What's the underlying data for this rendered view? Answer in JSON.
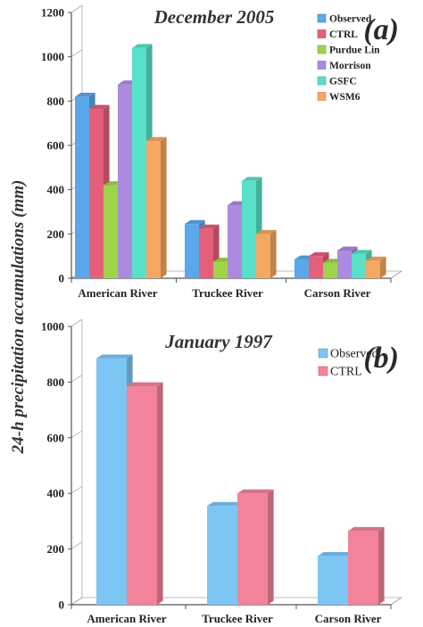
{
  "ylabel": "24-h precipitation accumulations (mm)",
  "chart_data": [
    {
      "type": "bar",
      "panel": "(a)",
      "title": "December 2005",
      "categories": [
        "American River",
        "Truckee River",
        "Carson River"
      ],
      "ylim": [
        0,
        1200
      ],
      "yticks": [
        0,
        200,
        400,
        600,
        800,
        1000,
        1200
      ],
      "legend_position": "top-right",
      "series": [
        {
          "name": "Observed",
          "color": "#5aa8ea",
          "values": [
            820,
            245,
            85
          ]
        },
        {
          "name": "CTRL",
          "color": "#e55f7a",
          "values": [
            765,
            225,
            100
          ]
        },
        {
          "name": "Purdue Lin",
          "color": "#9ed44a",
          "values": [
            420,
            75,
            70
          ]
        },
        {
          "name": "Morrison",
          "color": "#ab8ae0",
          "values": [
            875,
            330,
            125
          ]
        },
        {
          "name": "GSFC",
          "color": "#58e0c8",
          "values": [
            1040,
            440,
            110
          ]
        },
        {
          "name": "WSM6",
          "color": "#f5a862",
          "values": [
            620,
            200,
            80
          ]
        }
      ]
    },
    {
      "type": "bar",
      "panel": "(b)",
      "title": "January 1997",
      "categories": [
        "American River",
        "Truckee River",
        "Carson River"
      ],
      "ylim": [
        0,
        1000
      ],
      "yticks": [
        0,
        200,
        400,
        600,
        800,
        1000
      ],
      "legend_position": "top-right",
      "series": [
        {
          "name": "Observed",
          "color": "#7cc6f4",
          "values": [
            885,
            355,
            175
          ]
        },
        {
          "name": "CTRL",
          "color": "#f2839a",
          "values": [
            785,
            400,
            265
          ]
        }
      ]
    }
  ]
}
